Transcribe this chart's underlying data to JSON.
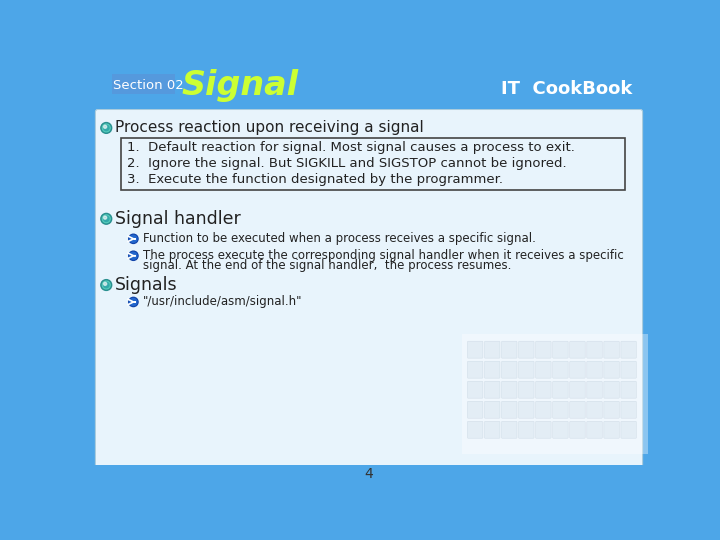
{
  "bg_color": "#4da6e8",
  "header_bg": "#4da6e8",
  "slide_bg": "#e8f4fc",
  "header_section_text": "Section 02",
  "header_section_color": "#ffffff",
  "header_section_bg": "#5599cc",
  "header_title_text": "Signal",
  "header_title_color": "#ccff33",
  "header_cookbook_text": "IT  CookBook",
  "header_cookbook_color": "#ffffff",
  "main_bullet1": "Process reaction upon receiving a signal",
  "box_lines": [
    "1.  Default reaction for signal. Most signal causes a process to exit.",
    "2.  Ignore the signal. But SIGKILL and SIGSTOP cannot be ignored.",
    "3.  Execute the function designated by the programmer."
  ],
  "main_bullet2": "Signal handler",
  "sub_bullet1": "Function to be executed when a process receives a specific signal.",
  "sub_bullet2_line1": "The process execute the corresponding signal handler when it receives a specific",
  "sub_bullet2_line2": "signal. At the end of the signal handler,  the process resumes.",
  "main_bullet3": "Signals",
  "sub_bullet3": "\"/usr/include/asm/signal.h\"",
  "page_number": "4",
  "text_color": "#222222",
  "box_border_color": "#444444",
  "small_text_color": "#222222",
  "bullet_main_outer": "#2a9090",
  "bullet_main_mid": "#ffffff",
  "bullet_main_inner": "#3ab0a0",
  "bullet_sub_color": "#2255cc"
}
